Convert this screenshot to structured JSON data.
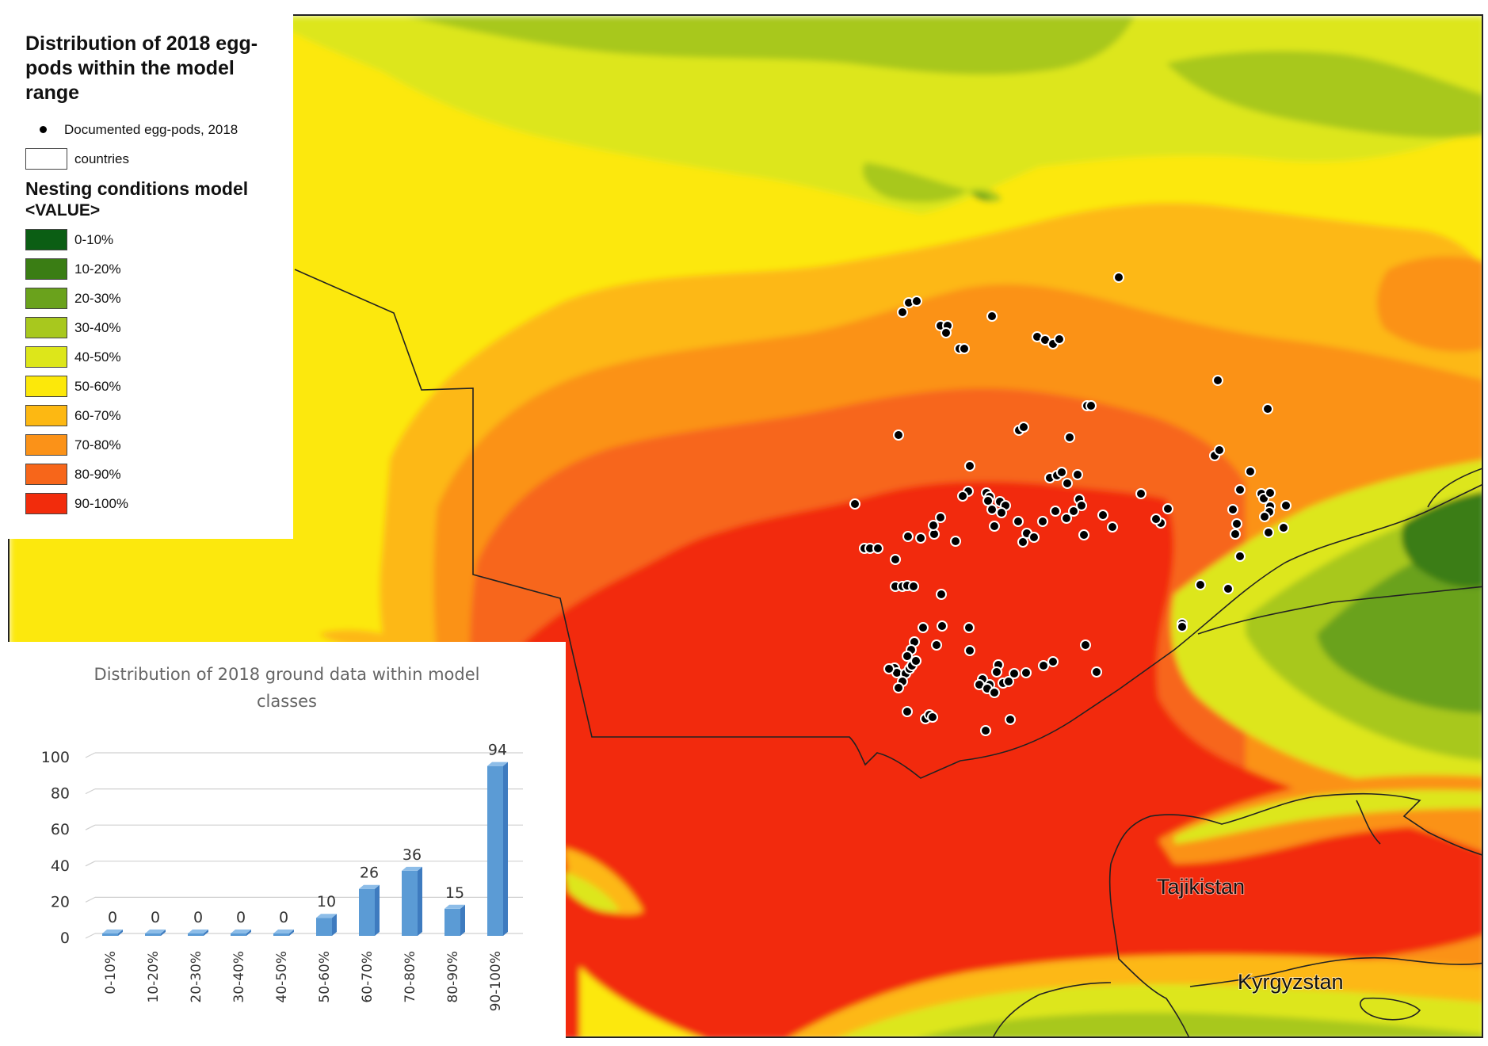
{
  "map": {
    "country_labels": [
      {
        "id": "tajikistan",
        "text": "Tajikistan"
      },
      {
        "id": "kyrgyzstan",
        "text": "Kyrgyzstan"
      }
    ]
  },
  "legend": {
    "title": "Distribution of 2018 egg-pods within the model range",
    "points_label": "Documented egg-pods, 2018",
    "countries_label": "countries",
    "model_title": "Nesting conditions model",
    "value_title": "<VALUE>",
    "classes": [
      {
        "label": "0-10%",
        "color": "#0b5e14"
      },
      {
        "label": "10-20%",
        "color": "#3a7d14"
      },
      {
        "label": "20-30%",
        "color": "#6aa21c"
      },
      {
        "label": "30-40%",
        "color": "#a8c81e"
      },
      {
        "label": "40-50%",
        "color": "#dde61a"
      },
      {
        "label": "50-60%",
        "color": "#fce80a"
      },
      {
        "label": "60-70%",
        "color": "#fdb812"
      },
      {
        "label": "70-80%",
        "color": "#fb9218"
      },
      {
        "label": "80-90%",
        "color": "#f7661a"
      },
      {
        "label": "90-100%",
        "color": "#f22c0c"
      }
    ]
  },
  "chart_data": {
    "type": "bar",
    "title": "Distribution of 2018 ground data within model classes",
    "categories": [
      "0-10%",
      "10-20%",
      "20-30%",
      "30-40%",
      "40-50%",
      "50-60%",
      "60-70%",
      "70-80%",
      "80-90%",
      "90-100%"
    ],
    "values": [
      0,
      0,
      0,
      0,
      0,
      10,
      26,
      36,
      15,
      94
    ],
    "ylim": [
      0,
      100
    ],
    "yticks": [
      0,
      20,
      40,
      60,
      80,
      100
    ],
    "bar_color": "#5b9bd5",
    "grid": true,
    "xlabel": "",
    "ylabel": ""
  }
}
